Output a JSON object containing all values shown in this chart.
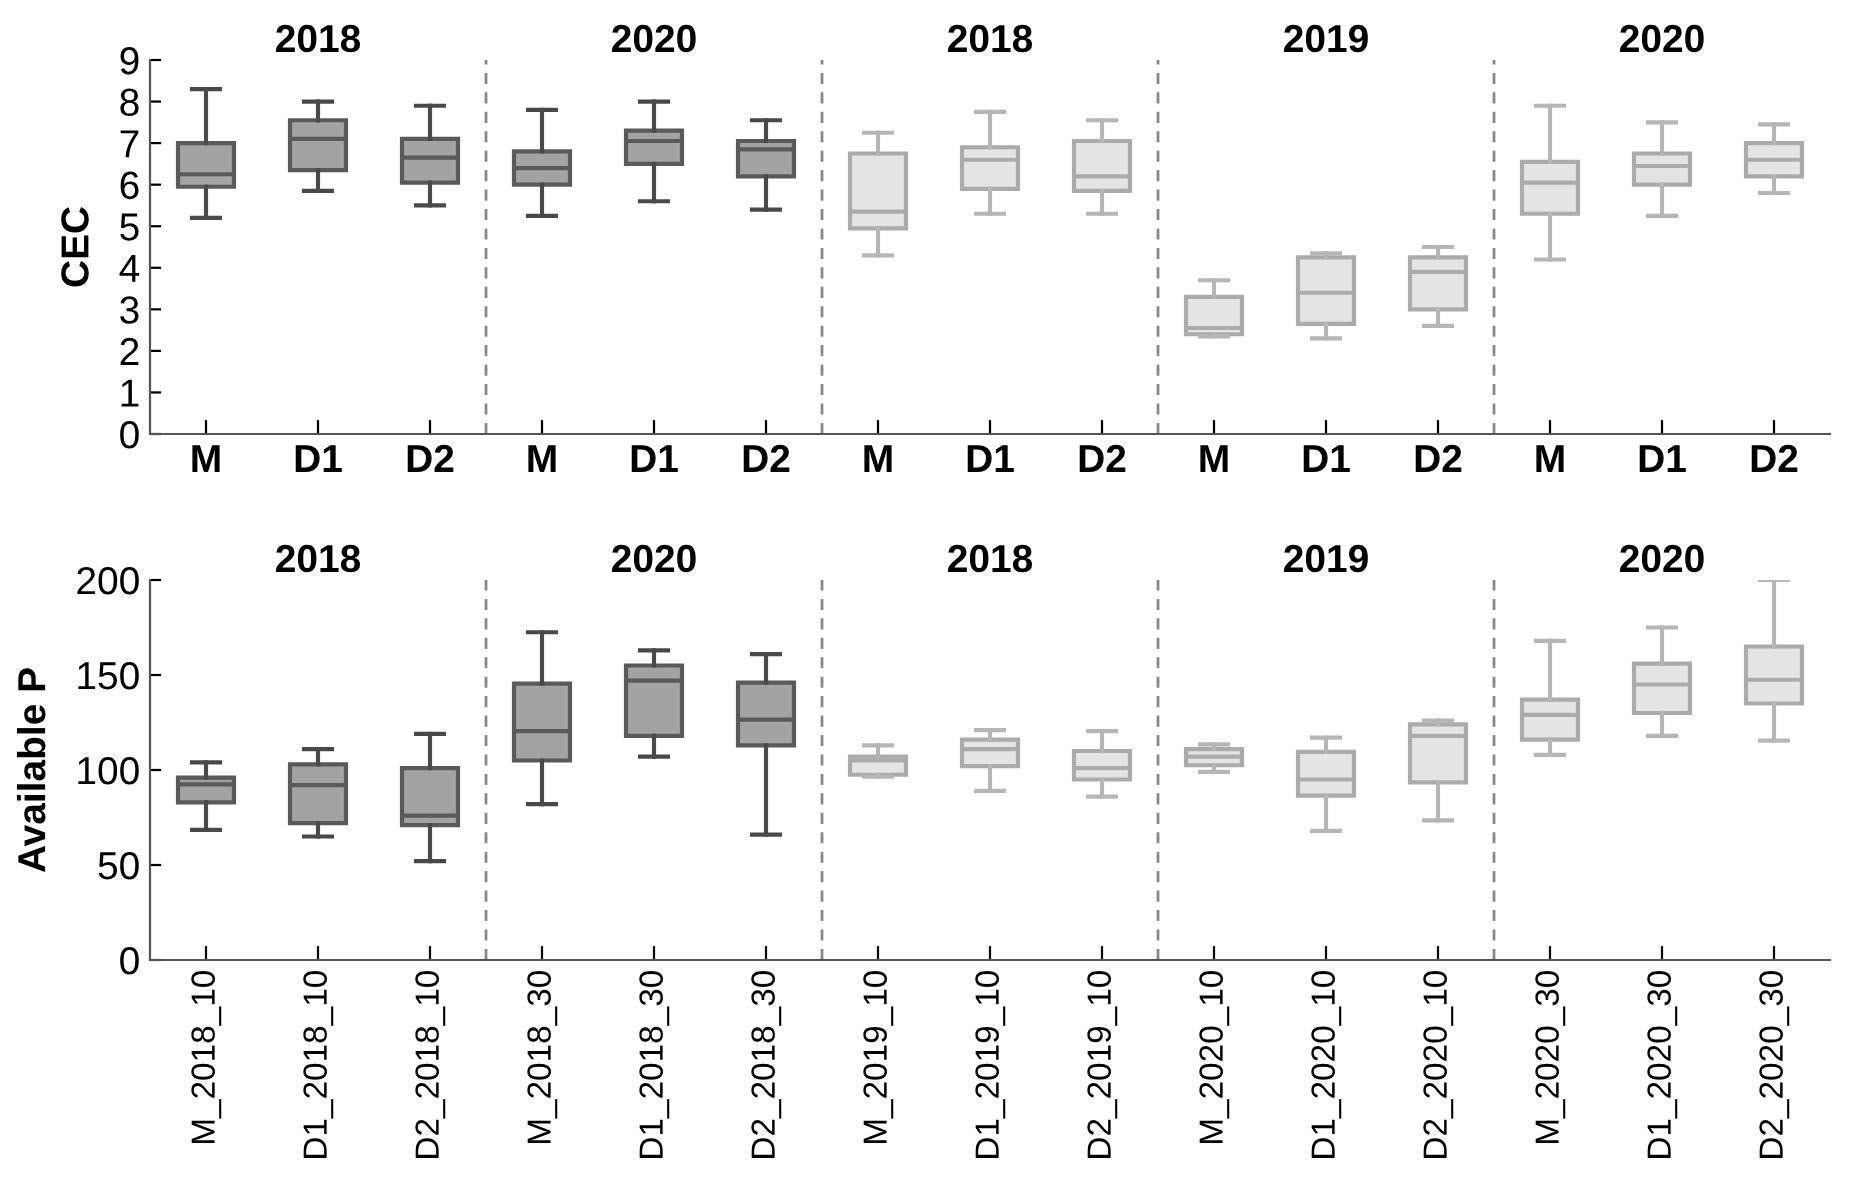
{
  "chart_data": [
    {
      "type": "box",
      "ylabel": "CEC",
      "categories": [
        "M",
        "D1",
        "D2",
        "M",
        "D1",
        "D2",
        "M",
        "D1",
        "D2",
        "M",
        "D1",
        "D2",
        "M",
        "D1",
        "D2"
      ],
      "colors": [
        "#a3a3a3",
        "#a3a3a3",
        "#a3a3a3",
        "#a3a3a3",
        "#a3a3a3",
        "#a3a3a3",
        "#e4e4e4",
        "#e4e4e4",
        "#e4e4e4",
        "#e4e4e4",
        "#e4e4e4",
        "#e4e4e4",
        "#e4e4e4",
        "#e4e4e4",
        "#e4e4e4"
      ],
      "ylim": [
        0,
        9
      ],
      "yticks": [
        0,
        1,
        2,
        3,
        4,
        5,
        6,
        7,
        8,
        9
      ],
      "annotations": [
        "2018",
        "2020",
        "2018",
        "2019",
        "2020"
      ],
      "boxes": [
        {
          "low": 5.2,
          "q1": 5.95,
          "median": 6.25,
          "q3": 7.0,
          "high": 8.3
        },
        {
          "low": 5.85,
          "q1": 6.35,
          "median": 7.1,
          "q3": 7.55,
          "high": 8.0
        },
        {
          "low": 5.5,
          "q1": 6.05,
          "median": 6.65,
          "q3": 7.1,
          "high": 7.9
        },
        {
          "low": 5.25,
          "q1": 6.0,
          "median": 6.4,
          "q3": 6.8,
          "high": 7.8
        },
        {
          "low": 5.6,
          "q1": 6.5,
          "median": 7.05,
          "q3": 7.3,
          "high": 8.0
        },
        {
          "low": 5.4,
          "q1": 6.2,
          "median": 6.85,
          "q3": 7.05,
          "high": 7.55
        },
        {
          "low": 4.3,
          "q1": 4.95,
          "median": 5.35,
          "q3": 6.75,
          "high": 7.25
        },
        {
          "low": 5.3,
          "q1": 5.9,
          "median": 6.6,
          "q3": 6.9,
          "high": 7.75
        },
        {
          "low": 5.3,
          "q1": 5.85,
          "median": 6.2,
          "q3": 7.05,
          "high": 7.55
        },
        {
          "low": 2.35,
          "q1": 2.4,
          "median": 2.55,
          "q3": 3.3,
          "high": 3.7
        },
        {
          "low": 2.3,
          "q1": 2.65,
          "median": 3.4,
          "q3": 4.25,
          "high": 4.35
        },
        {
          "low": 2.6,
          "q1": 3.0,
          "median": 3.9,
          "q3": 4.25,
          "high": 4.5
        },
        {
          "low": 4.2,
          "q1": 5.3,
          "median": 6.05,
          "q3": 6.55,
          "high": 7.9
        },
        {
          "low": 5.25,
          "q1": 6.0,
          "median": 6.45,
          "q3": 6.75,
          "high": 7.5
        },
        {
          "low": 5.8,
          "q1": 6.2,
          "median": 6.6,
          "q3": 7.0,
          "high": 7.45
        }
      ]
    },
    {
      "type": "box",
      "ylabel": "Available P",
      "categories": [
        "M_2018_10",
        "D1_2018_10",
        "D2_2018_10",
        "M_2018_30",
        "D1_2018_30",
        "D2_2018_30",
        "M_2019_10",
        "D1_2019_10",
        "D2_2019_10",
        "M_2020_10",
        "D1_2020_10",
        "D2_2020_10",
        "M_2020_30",
        "D1_2020_30",
        "D2_2020_30"
      ],
      "colors": [
        "#a3a3a3",
        "#a3a3a3",
        "#a3a3a3",
        "#a3a3a3",
        "#a3a3a3",
        "#a3a3a3",
        "#e4e4e4",
        "#e4e4e4",
        "#e4e4e4",
        "#e4e4e4",
        "#e4e4e4",
        "#e4e4e4",
        "#e4e4e4",
        "#e4e4e4",
        "#e4e4e4"
      ],
      "ylim": [
        0,
        200
      ],
      "yticks": [
        0,
        50,
        100,
        150,
        200
      ],
      "annotations": [
        "2018",
        "2020",
        "2018",
        "2019",
        "2020"
      ],
      "boxes": [
        {
          "low": 68.5,
          "q1": 83,
          "median": 92.4,
          "q3": 96,
          "high": 104
        },
        {
          "low": 65,
          "q1": 72,
          "median": 92,
          "q3": 103,
          "high": 111
        },
        {
          "low": 52,
          "q1": 71,
          "median": 76,
          "q3": 101,
          "high": 119
        },
        {
          "low": 82,
          "q1": 105,
          "median": 120.5,
          "q3": 145.5,
          "high": 172.5
        },
        {
          "low": 107,
          "q1": 118,
          "median": 147,
          "q3": 155,
          "high": 163
        },
        {
          "low": 66,
          "q1": 113,
          "median": 126.5,
          "q3": 146,
          "high": 161
        },
        {
          "low": 96.5,
          "q1": 97.5,
          "median": 105,
          "q3": 107,
          "high": 113
        },
        {
          "low": 89,
          "q1": 102,
          "median": 111,
          "q3": 116,
          "high": 121
        },
        {
          "low": 86,
          "q1": 95,
          "median": 101,
          "q3": 110,
          "high": 120.5
        },
        {
          "low": 99,
          "q1": 102.5,
          "median": 107,
          "q3": 111,
          "high": 113.5
        },
        {
          "low": 68,
          "q1": 86.5,
          "median": 95,
          "q3": 109.5,
          "high": 117
        },
        {
          "low": 73.5,
          "q1": 93.5,
          "median": 118,
          "q3": 124,
          "high": 126
        },
        {
          "low": 108,
          "q1": 116,
          "median": 129,
          "q3": 137,
          "high": 168
        },
        {
          "low": 118,
          "q1": 130,
          "median": 145,
          "q3": 156,
          "high": 175
        },
        {
          "low": 115.5,
          "q1": 135,
          "median": 147.5,
          "q3": 165,
          "high": 200
        }
      ]
    }
  ]
}
